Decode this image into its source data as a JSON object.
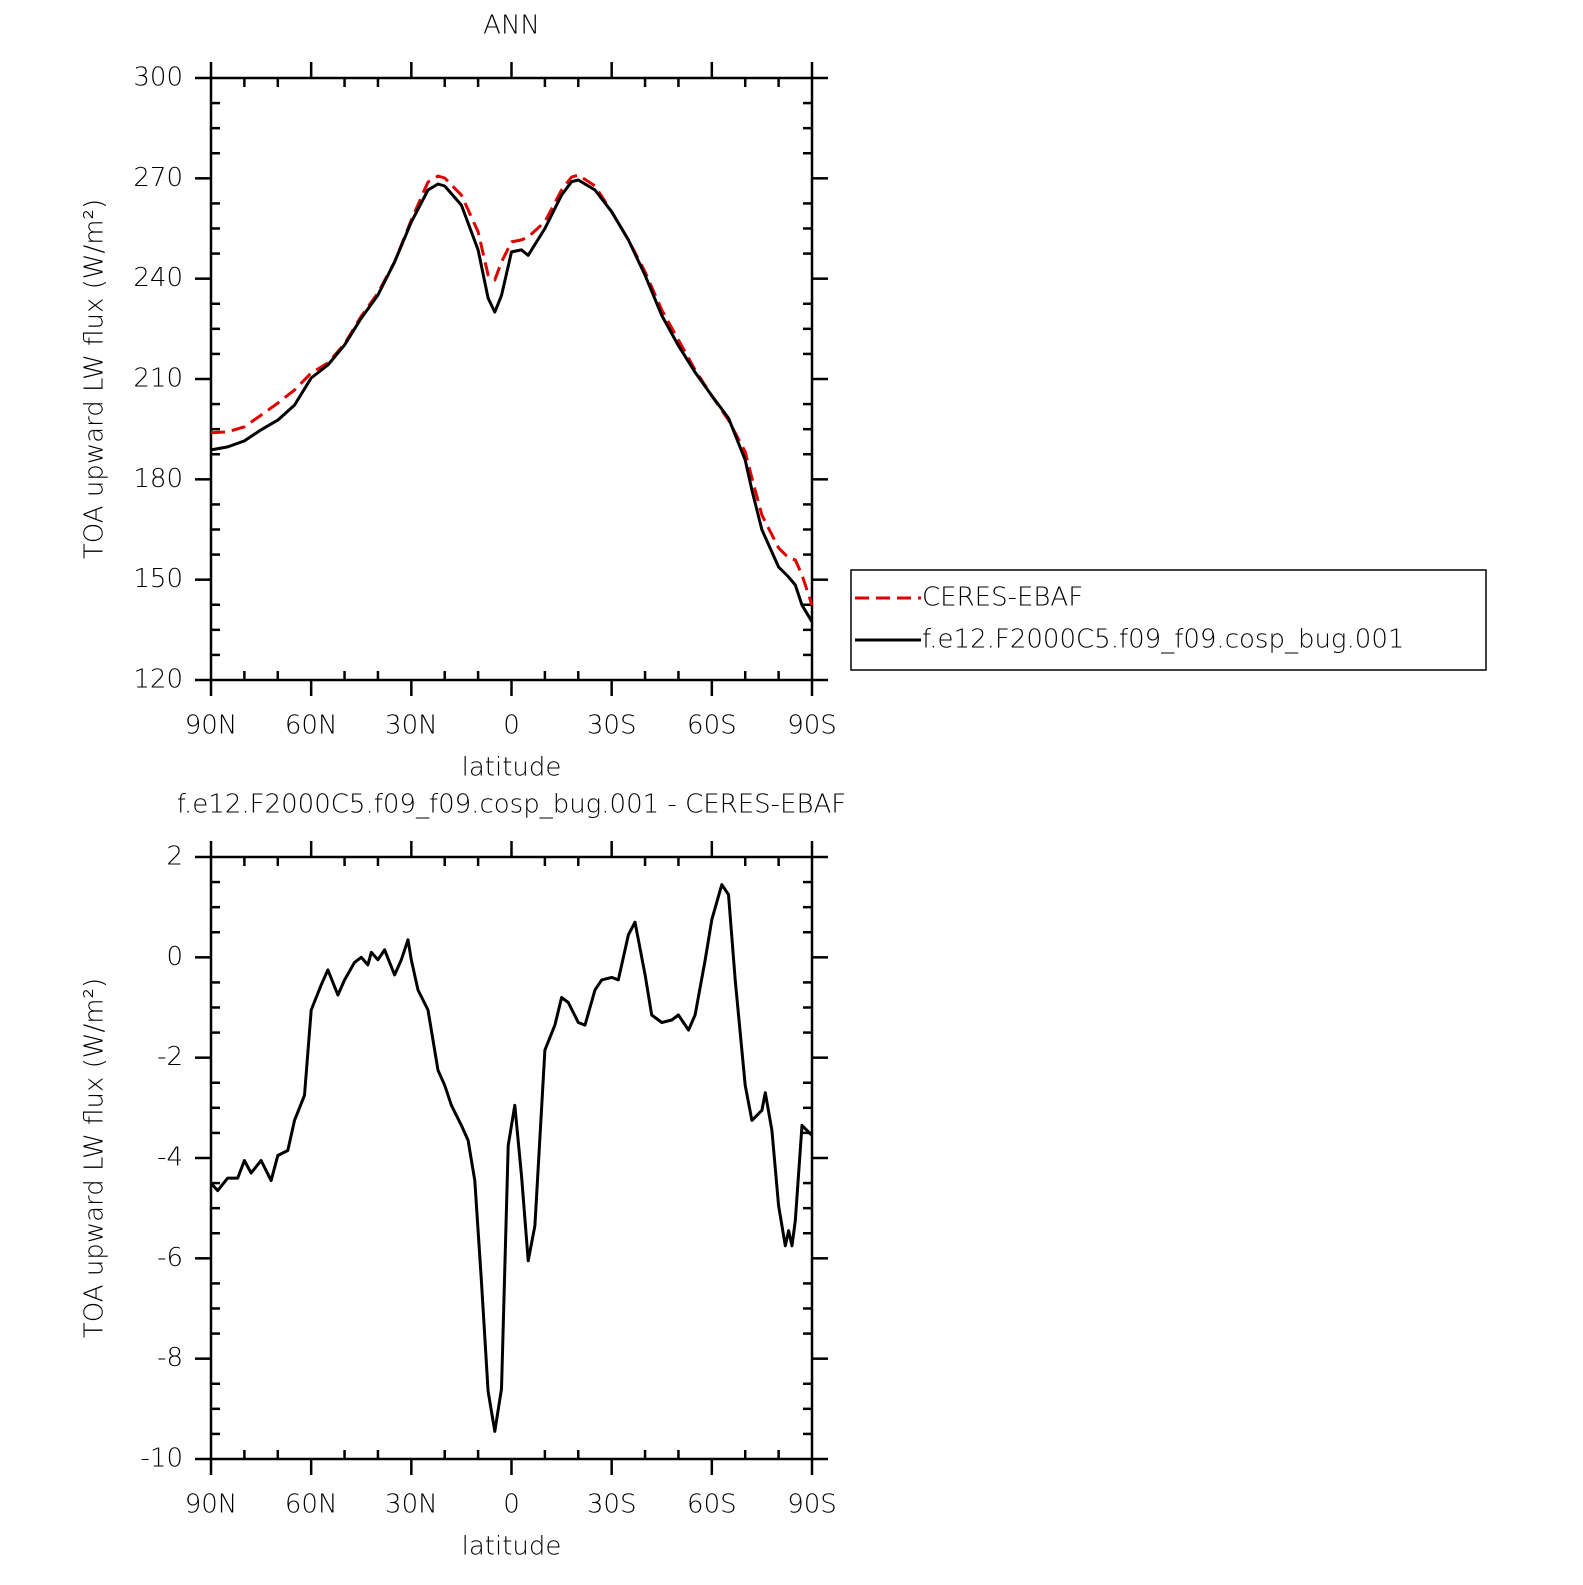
{
  "chart_data": [
    {
      "type": "line",
      "title": "ANN",
      "xlabel": "latitude",
      "ylabel": "TOA upward LW flux (W/m²)",
      "x": [
        90,
        85,
        80,
        75,
        70,
        65,
        60,
        55,
        50,
        45,
        40,
        35,
        30,
        25,
        22,
        20,
        15,
        10,
        7,
        5,
        3,
        0,
        -3,
        -5,
        -10,
        -15,
        -18,
        -20,
        -25,
        -30,
        -35,
        -40,
        -45,
        -50,
        -55,
        -60,
        -65,
        -70,
        -72,
        -75,
        -80,
        -83,
        -85,
        -87,
        -90
      ],
      "series": [
        {
          "name": "CERES-EBAF",
          "color": "#e00000",
          "linestyle": "dashed",
          "values": [
            193.9,
            194.2,
            195.7,
            199.2,
            202.8,
            206.7,
            211.8,
            214.8,
            220.5,
            228.8,
            235.7,
            245,
            257.5,
            268.9,
            270.7,
            270.1,
            265,
            254,
            241.1,
            239.6,
            245,
            251,
            251.6,
            252.5,
            257,
            266.5,
            270.4,
            271,
            267.7,
            260,
            251.6,
            242,
            230.6,
            221.7,
            212.7,
            205,
            197.7,
            188.2,
            180.4,
            169.3,
            159.5,
            156.5,
            155.9,
            151.4,
            142.4
          ]
        },
        {
          "name": "f.e12.F2000C5.f09_f09.cosp_bug.001",
          "color": "#000000",
          "linestyle": "solid",
          "values": [
            188.8,
            189.7,
            191.5,
            194.8,
            197.7,
            202.2,
            210.3,
            214.2,
            220.2,
            228.2,
            235.1,
            245,
            256.9,
            266.5,
            268.3,
            267.7,
            262,
            248.6,
            234.2,
            230,
            235,
            248,
            248.6,
            247,
            255,
            265,
            269,
            269.5,
            266.5,
            260,
            251.6,
            241,
            229,
            220,
            212,
            205,
            198.3,
            185.8,
            176.8,
            164.9,
            153.8,
            150.8,
            148.4,
            142.4,
            137.4
          ]
        }
      ],
      "xlim": [
        90,
        -90
      ],
      "xticks": [
        {
          "value": 90,
          "label": "90N"
        },
        {
          "value": 60,
          "label": "60N"
        },
        {
          "value": 30,
          "label": "30N"
        },
        0,
        {
          "value": -30,
          "label": "30S"
        },
        {
          "value": -60,
          "label": "60S"
        },
        {
          "value": -90,
          "label": "90S"
        }
      ],
      "ylim": [
        120,
        300
      ],
      "yticks": [
        120,
        150,
        180,
        210,
        240,
        270,
        300
      ],
      "legend": "right"
    },
    {
      "type": "line",
      "title": "f.e12.F2000C5.f09_f09.cosp_bug.001 - CERES-EBAF",
      "xlabel": "latitude",
      "ylabel": "TOA upward LW flux (W/m²)",
      "x": [
        90,
        88,
        85,
        82,
        80,
        78,
        75,
        72,
        70,
        67,
        65,
        62,
        60,
        57,
        55,
        52,
        50,
        47,
        45,
        43,
        42,
        40,
        38,
        35,
        33,
        31,
        30,
        28,
        25,
        22,
        20,
        18,
        15,
        13,
        11,
        9,
        7,
        5,
        3,
        1,
        -1,
        -3,
        -5,
        -7,
        -10,
        -13,
        -15,
        -17,
        -20,
        -22,
        -25,
        -27,
        -30,
        -32,
        -35,
        -37,
        -40,
        -42,
        -45,
        -48,
        -50,
        -53,
        -55,
        -58,
        -60,
        -63,
        -65,
        -67,
        -70,
        -72,
        -75,
        -76,
        -78,
        -80,
        -82,
        -83,
        -84,
        -85,
        -87,
        -90
      ],
      "values": [
        -4.5,
        -4.65,
        -4.4,
        -4.4,
        -4.05,
        -4.3,
        -4.05,
        -4.45,
        -3.95,
        -3.85,
        -3.25,
        -2.75,
        -1.05,
        -0.55,
        -0.25,
        -0.75,
        -0.45,
        -0.1,
        0,
        -0.15,
        0.1,
        -0.05,
        0.15,
        -0.35,
        -0.05,
        0.35,
        -0.05,
        -0.65,
        -1.05,
        -2.25,
        -2.55,
        -2.95,
        -3.35,
        -3.65,
        -4.45,
        -6.45,
        -8.65,
        -9.45,
        -8.6,
        -3.75,
        -2.95,
        -4.35,
        -6.05,
        -5.35,
        -1.85,
        -1.35,
        -0.8,
        -0.9,
        -1.3,
        -1.35,
        -0.65,
        -0.45,
        -0.4,
        -0.45,
        0.45,
        0.7,
        -0.35,
        -1.15,
        -1.3,
        -1.25,
        -1.15,
        -1.45,
        -1.15,
        -0.05,
        0.75,
        1.45,
        1.25,
        -0.45,
        -2.55,
        -3.25,
        -3.05,
        -2.7,
        -3.45,
        -4.95,
        -5.75,
        -5.45,
        -5.75,
        -5.25,
        -3.35,
        -3.55
      ],
      "color": "#000000",
      "xlim": [
        90,
        -90
      ],
      "xticks": [
        {
          "value": 90,
          "label": "90N"
        },
        {
          "value": 60,
          "label": "60N"
        },
        {
          "value": 30,
          "label": "30N"
        },
        0,
        {
          "value": -30,
          "label": "30S"
        },
        {
          "value": -60,
          "label": "60S"
        },
        {
          "value": -90,
          "label": "90S"
        }
      ],
      "ylim": [
        -10,
        2
      ],
      "yticks": [
        -10,
        -8,
        -6,
        -4,
        -2,
        0,
        2
      ]
    }
  ]
}
